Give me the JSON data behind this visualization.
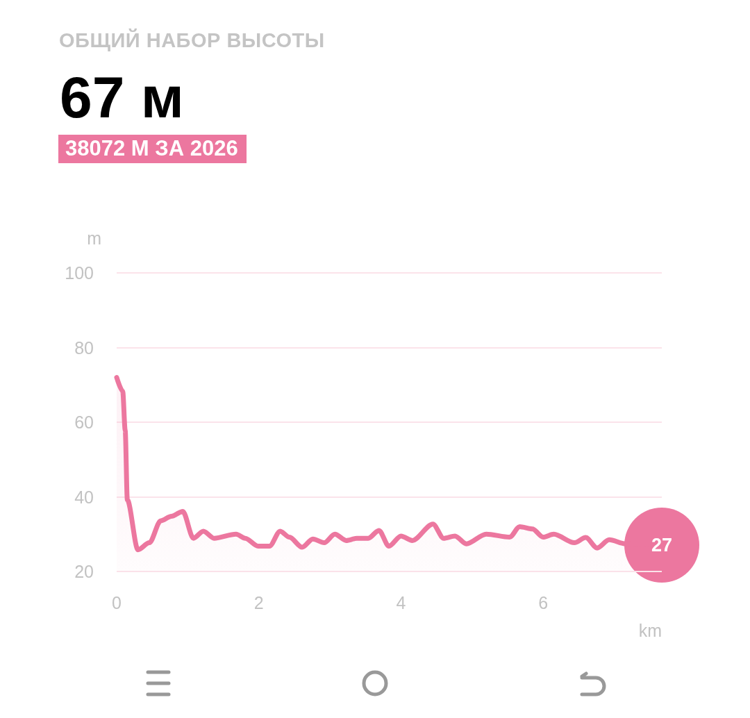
{
  "chart_data": {
    "type": "area",
    "title": "ОБЩИЙ НАБОР ВЫСОТЫ",
    "subtitle": "67 м",
    "annotations": [
      "38072 М ЗА 2026"
    ],
    "xlabel": "km",
    "ylabel": "m",
    "x": [
      0,
      0.085,
      0.12,
      0.15,
      0.3,
      0.46,
      0.62,
      0.77,
      0.93,
      1.08,
      1.22,
      1.37,
      1.68,
      1.81,
      1.99,
      2.15,
      2.3,
      2.43,
      2.61,
      2.76,
      2.92,
      3.07,
      3.23,
      3.38,
      3.54,
      3.69,
      3.83,
      4.0,
      4.16,
      4.45,
      4.6,
      4.76,
      4.92,
      5.2,
      5.53,
      5.67,
      5.85,
      6.0,
      6.15,
      6.44,
      6.6,
      6.76,
      6.93,
      7.16,
      7.67
    ],
    "series": [
      {
        "color": "#ec779f",
        "values": [
          72,
          68.3,
          57.8,
          39.2,
          25.8,
          27.7,
          33.6,
          34.8,
          36.1,
          28.9,
          30.8,
          28.9,
          30,
          28.9,
          26.8,
          26.8,
          30.8,
          29.2,
          26.5,
          28.7,
          27.7,
          30,
          28.3,
          28.9,
          28.9,
          31,
          26.8,
          29.5,
          28.3,
          32.7,
          28.9,
          29.5,
          27.4,
          30,
          29.2,
          32,
          31.4,
          29.2,
          30,
          27.7,
          29.1,
          26.3,
          28.5,
          27.4,
          27
        ],
        "value_labels": [
          null,
          null,
          null,
          null,
          null,
          null,
          null,
          null,
          null,
          null,
          null,
          null,
          null,
          null,
          null,
          null,
          null,
          null,
          null,
          null,
          null,
          null,
          null,
          null,
          null,
          null,
          null,
          null,
          null,
          null,
          null,
          null,
          null,
          null,
          null,
          null,
          null,
          null,
          null,
          null,
          null,
          null,
          null,
          null,
          "27"
        ]
      }
    ],
    "xlim": [
      0,
      7.67
    ],
    "xticks": [
      0,
      2,
      4,
      6
    ],
    "ylim": [
      20,
      100
    ],
    "yticks": [
      20,
      40,
      60,
      80,
      100
    ],
    "grid": "y",
    "line_style": "solid"
  }
}
